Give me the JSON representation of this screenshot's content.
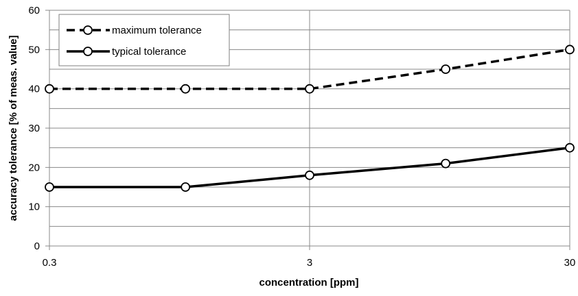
{
  "chart_data": {
    "type": "line",
    "xlabel": "concentration [ppm]",
    "ylabel": "accuracy tolerance [% of meas. value]",
    "x_scale": "log",
    "xlim": [
      0.3,
      30
    ],
    "ylim": [
      0,
      60
    ],
    "x_ticks": [
      0.3,
      3,
      30
    ],
    "x_tick_labels": [
      "0.3",
      "3",
      "30"
    ],
    "y_ticks": [
      0,
      10,
      20,
      30,
      40,
      50,
      60
    ],
    "y_tick_labels": [
      "0",
      "10",
      "20",
      "30",
      "40",
      "50",
      "60"
    ],
    "y_minor_gridlines": [
      5,
      15,
      25,
      35,
      45,
      55
    ],
    "grid": true,
    "legend_position": "top-left",
    "series": [
      {
        "name": "maximum tolerance",
        "line_style": "dashed",
        "marker": "open-circle",
        "color": "#000000",
        "x": [
          0.3,
          1,
          3,
          10,
          30
        ],
        "y": [
          40,
          40,
          40,
          45,
          50
        ]
      },
      {
        "name": "typical tolerance",
        "line_style": "solid",
        "marker": "open-circle",
        "color": "#000000",
        "x": [
          0.3,
          1,
          3,
          10,
          30
        ],
        "y": [
          15,
          15,
          18,
          21,
          25
        ]
      }
    ]
  }
}
